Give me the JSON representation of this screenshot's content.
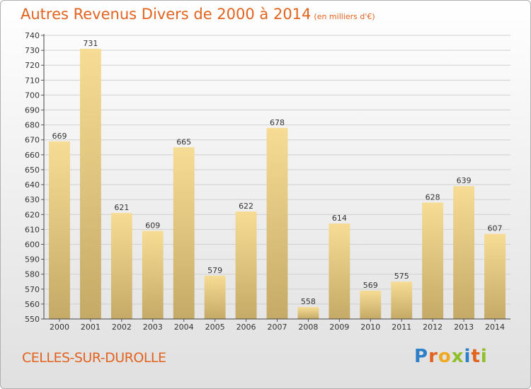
{
  "header": {
    "title": "Autres Revenus Divers de 2000 à 2014",
    "unit": "(en milliers d'€)"
  },
  "footer": {
    "place": "CELLES-SUR-DUROLLE",
    "logo_text": "Proxiti",
    "logo_letters": [
      {
        "ch": "P",
        "color": "#2e7fc9"
      },
      {
        "ch": "r",
        "color": "#e2621e"
      },
      {
        "ch": "o",
        "color": "#f0a81c"
      },
      {
        "ch": "x",
        "color": "#8fbf2a"
      },
      {
        "ch": "i",
        "color": "#2e7fc9"
      },
      {
        "ch": "t",
        "color": "#e2621e"
      },
      {
        "ch": "i",
        "color": "#8fbf2a"
      }
    ]
  },
  "colors": {
    "bar_top": "#f6dc94",
    "bar_bottom": "#c4aa66",
    "accent": "#e2621e"
  },
  "chart_data": {
    "type": "bar",
    "categories": [
      "2000",
      "2001",
      "2002",
      "2003",
      "2004",
      "2005",
      "2006",
      "2007",
      "2008",
      "2009",
      "2010",
      "2011",
      "2012",
      "2013",
      "2014"
    ],
    "values": [
      669,
      731,
      621,
      609,
      665,
      579,
      622,
      678,
      558,
      614,
      569,
      575,
      628,
      639,
      607
    ],
    "ylim": [
      550,
      740
    ],
    "ytick_step": 10,
    "grid": true,
    "data_labels": true
  }
}
